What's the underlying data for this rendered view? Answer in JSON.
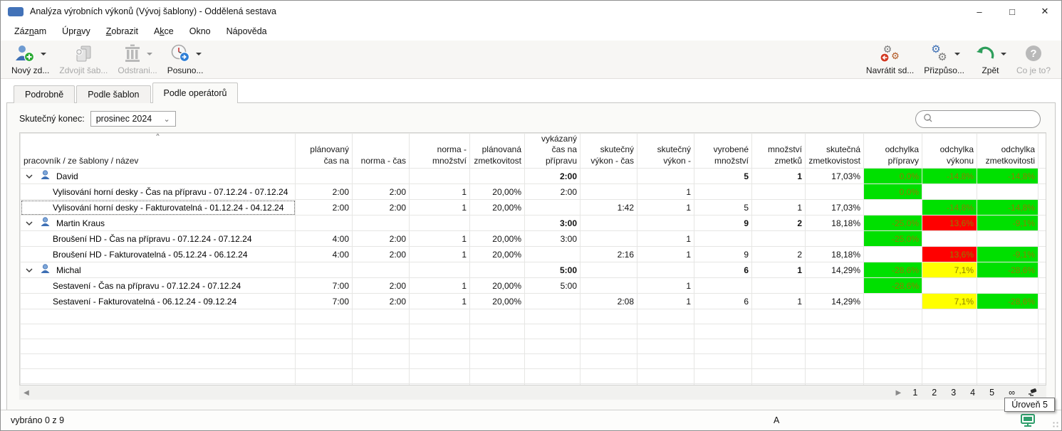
{
  "window": {
    "title": "Analýza výrobních výkonů (Vývoj šablony) - Oddělená sestava",
    "controls": {
      "minimize": "–",
      "maximize": "□",
      "close": "✕"
    }
  },
  "menu": {
    "items": [
      {
        "pre": "Záz",
        "key": "n",
        "post": "am"
      },
      {
        "pre": "Úpr",
        "key": "a",
        "post": "vy"
      },
      {
        "pre": "",
        "key": "Z",
        "post": "obrazit"
      },
      {
        "pre": "A",
        "key": "k",
        "post": "ce"
      },
      {
        "pre": "Okno",
        "key": "",
        "post": ""
      },
      {
        "pre": "Nápověda",
        "key": "",
        "post": ""
      }
    ]
  },
  "toolbar": {
    "left": [
      {
        "label": "Nový zd...",
        "icon": "new-resource-icon",
        "enabled": true,
        "dropdown": true
      },
      {
        "label": "Zdvojit šab...",
        "icon": "duplicate-template-icon",
        "enabled": false,
        "dropdown": false
      },
      {
        "label": "Odstrani...",
        "icon": "remove-icon",
        "enabled": false,
        "dropdown": true
      },
      {
        "label": "Posuno...",
        "icon": "postpone-icon",
        "enabled": true,
        "dropdown": true
      }
    ],
    "right": [
      {
        "label": "Navrátit sd...",
        "icon": "revert-shared-icon",
        "enabled": true,
        "dropdown": false
      },
      {
        "label": "Přizpůso...",
        "icon": "customize-icon",
        "enabled": true,
        "dropdown": true
      },
      {
        "label": "Zpět",
        "icon": "undo-icon",
        "enabled": true,
        "dropdown": true
      },
      {
        "label": "Co je to?",
        "icon": "what-is-this-icon",
        "enabled": false,
        "dropdown": false
      }
    ]
  },
  "tabs": [
    {
      "label": "Podrobně",
      "active": false
    },
    {
      "label": "Podle šablon",
      "active": false
    },
    {
      "label": "Podle operátorů",
      "active": true
    }
  ],
  "filter": {
    "label": "Skutečný konec:",
    "value": "prosinec 2024"
  },
  "search": {
    "value": "",
    "placeholder": ""
  },
  "table": {
    "columns": [
      "pracovník / ze šablony / název",
      "plánovaný čas na",
      "norma - čas",
      "norma - množství",
      "plánovaná zmetkovitost",
      "vykázaný čas na přípravu",
      "skutečný výkon - čas",
      "skutečný výkon -",
      "vyrobené množství",
      "množství zmetků",
      "skutečná zmetkovistost",
      "odchylka přípravy",
      "odchylka výkonu",
      "odchylka zmetkovitosti"
    ],
    "rows": [
      {
        "type": "group",
        "name": "David",
        "cells": {
          "vykaz_cas": "2:00",
          "vyrobene": "5",
          "zmetky": "1",
          "skut_zmetk": "17,03%",
          "odch_prip": "0,0%",
          "odch_vyk": "-14,8%",
          "odch_zm": "-14,8%"
        },
        "fills": {
          "odch_prip": "green",
          "odch_vyk": "green",
          "odch_zm": "green"
        }
      },
      {
        "type": "item",
        "name": "Vylisování horní desky - Čas na přípravu - 07.12.24 - 07.12.24",
        "cells": {
          "plan_cas": "2:00",
          "norma_cas": "2:00",
          "norma_mn": "1",
          "plan_zmetk": "20,00%",
          "vykaz_cas": "2:00",
          "skut_vykon": "1",
          "odch_prip": "0,0%"
        },
        "fills": {
          "odch_prip": "green"
        }
      },
      {
        "type": "item",
        "focused": true,
        "name": "Vylisování horní desky - Fakturovatelná - 01.12.24 - 04.12.24",
        "cells": {
          "plan_cas": "2:00",
          "norma_cas": "2:00",
          "norma_mn": "1",
          "plan_zmetk": "20,00%",
          "skut_cas": "1:42",
          "skut_vykon": "1",
          "vyrobene": "5",
          "zmetky": "1",
          "skut_zmetk": "17,03%",
          "odch_vyk": "-14,8%",
          "odch_zm": "-14,8%"
        },
        "fills": {
          "odch_vyk": "green",
          "odch_zm": "green"
        }
      },
      {
        "type": "group",
        "name": "Martin Kraus",
        "cells": {
          "vykaz_cas": "3:00",
          "vyrobene": "9",
          "zmetky": "2",
          "skut_zmetk": "18,18%",
          "odch_prip": "-25,0%",
          "odch_vyk": "13,6%",
          "odch_zm": "-9,1%"
        },
        "fills": {
          "odch_prip": "green",
          "odch_vyk": "red",
          "odch_zm": "green"
        }
      },
      {
        "type": "item",
        "name": "Broušení HD - Čas na přípravu - 07.12.24 - 07.12.24",
        "cells": {
          "plan_cas": "4:00",
          "norma_cas": "2:00",
          "norma_mn": "1",
          "plan_zmetk": "20,00%",
          "vykaz_cas": "3:00",
          "skut_vykon": "1",
          "odch_prip": "-25,0%"
        },
        "fills": {
          "odch_prip": "green"
        }
      },
      {
        "type": "item",
        "name": "Broušení HD - Fakturovatelná - 05.12.24 - 06.12.24",
        "cells": {
          "plan_cas": "4:00",
          "norma_cas": "2:00",
          "norma_mn": "1",
          "plan_zmetk": "20,00%",
          "skut_cas": "2:16",
          "skut_vykon": "1",
          "vyrobene": "9",
          "zmetky": "2",
          "skut_zmetk": "18,18%",
          "odch_vyk": "13,6%",
          "odch_zm": "-9,1%"
        },
        "fills": {
          "odch_vyk": "red",
          "odch_zm": "green"
        }
      },
      {
        "type": "group",
        "name": "Michal",
        "cells": {
          "vykaz_cas": "5:00",
          "vyrobene": "6",
          "zmetky": "1",
          "skut_zmetk": "14,29%",
          "odch_prip": "-28,6%",
          "odch_vyk": "7,1%",
          "odch_zm": "-28,6%"
        },
        "fills": {
          "odch_prip": "green",
          "odch_vyk": "yellow",
          "odch_zm": "green"
        }
      },
      {
        "type": "item",
        "name": "Sestavení - Čas na přípravu - 07.12.24 - 07.12.24",
        "cells": {
          "plan_cas": "7:00",
          "norma_cas": "2:00",
          "norma_mn": "1",
          "plan_zmetk": "20,00%",
          "vykaz_cas": "5:00",
          "skut_vykon": "1",
          "odch_prip": "-28,6%"
        },
        "fills": {
          "odch_prip": "green"
        }
      },
      {
        "type": "item",
        "name": "Sestavení - Fakturovatelná - 06.12.24 - 09.12.24",
        "cells": {
          "plan_cas": "7:00",
          "norma_cas": "2:00",
          "norma_mn": "1",
          "plan_zmetk": "20,00%",
          "skut_cas": "2:08",
          "skut_vykon": "1",
          "vyrobene": "6",
          "zmetky": "1",
          "skut_zmetk": "14,29%",
          "odch_vyk": "7,1%",
          "odch_zm": "-28,6%"
        },
        "fills": {
          "odch_vyk": "yellow",
          "odch_zm": "green"
        }
      }
    ],
    "empty_row_count": 6
  },
  "pager": {
    "pages": [
      "1",
      "2",
      "3",
      "4",
      "5",
      "∞"
    ]
  },
  "tooltip": {
    "text": "Úroveň 5"
  },
  "statusbar": {
    "selection": "vybráno 0 z 9",
    "indicator": "A"
  },
  "colors": {
    "green": "#00e000",
    "red": "#ff0000",
    "yellow": "#ffff00",
    "cell_text": "#8b8000",
    "accent_blue": "#3d6fb4"
  }
}
